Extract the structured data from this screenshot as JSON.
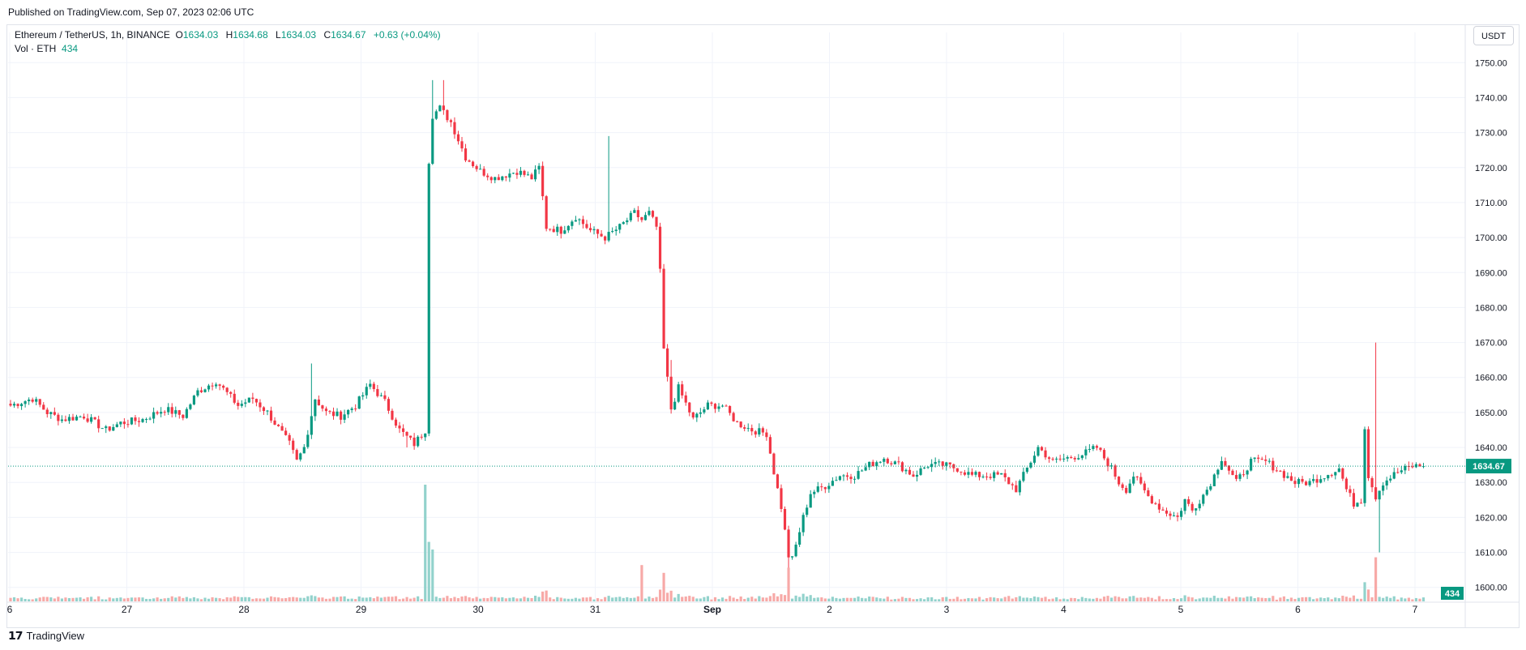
{
  "published": "Published on TradingView.com, Sep 07, 2023 02:06 UTC",
  "legend": {
    "symbol": "Ethereum / TetherUS, 1h, BINANCE",
    "o_label": "O",
    "o": "1634.03",
    "h_label": "H",
    "h": "1634.68",
    "l_label": "L",
    "l": "1634.03",
    "c_label": "C",
    "c": "1634.67",
    "change": "+0.63 (+0.04%)",
    "vol_label": "Vol · ETH",
    "vol": "434"
  },
  "currency": "USDT",
  "footer_brand": "TradingView",
  "colors": {
    "up": "#089981",
    "down": "#f23645",
    "vol_up": "#92d2cc",
    "vol_down": "#f7a9a7",
    "grid": "#f0f3fa",
    "axis_text": "#131722"
  },
  "chart_data": {
    "type": "candlestick",
    "symbol": "ETHUSDT",
    "interval": "1h",
    "y_ticks": [
      "1750.00",
      "1740.00",
      "1730.00",
      "1720.00",
      "1710.00",
      "1700.00",
      "1690.00",
      "1680.00",
      "1670.00",
      "1660.00",
      "1650.00",
      "1640.00",
      "1630.00",
      "1620.00",
      "1610.00",
      "1600.00"
    ],
    "ylim": [
      1596,
      1754
    ],
    "x_ticks": [
      "6",
      "27",
      "28",
      "29",
      "30",
      "31",
      "Sep",
      "2",
      "3",
      "4",
      "5",
      "6",
      "7"
    ],
    "last_price": "1634.67",
    "last_volume": "434",
    "close_path": [
      [
        0,
        1652
      ],
      [
        6,
        1654
      ],
      [
        10,
        1650
      ],
      [
        14,
        1648
      ],
      [
        20,
        1649
      ],
      [
        26,
        1645
      ],
      [
        30,
        1647
      ],
      [
        36,
        1648
      ],
      [
        42,
        1651
      ],
      [
        47,
        1649
      ],
      [
        51,
        1656
      ],
      [
        56,
        1659
      ],
      [
        62,
        1652
      ],
      [
        66,
        1654
      ],
      [
        70,
        1650
      ],
      [
        76,
        1641
      ],
      [
        78,
        1636
      ],
      [
        80,
        1640
      ],
      [
        83,
        1654
      ],
      [
        86,
        1650
      ],
      [
        90,
        1649
      ],
      [
        94,
        1652
      ],
      [
        98,
        1658
      ],
      [
        102,
        1653
      ],
      [
        106,
        1645
      ],
      [
        110,
        1641
      ],
      [
        113,
        1645
      ],
      [
        114,
        1722
      ],
      [
        115,
        1735
      ],
      [
        117,
        1737
      ],
      [
        120,
        1733
      ],
      [
        124,
        1723
      ],
      [
        128,
        1719
      ],
      [
        132,
        1717
      ],
      [
        138,
        1719
      ],
      [
        142,
        1717
      ],
      [
        144,
        1720
      ],
      [
        146,
        1703
      ],
      [
        150,
        1702
      ],
      [
        154,
        1706
      ],
      [
        158,
        1702
      ],
      [
        162,
        1700
      ],
      [
        166,
        1703
      ],
      [
        170,
        1707
      ],
      [
        172,
        1705
      ],
      [
        174,
        1707
      ],
      [
        176,
        1703
      ],
      [
        177,
        1690
      ],
      [
        178,
        1668
      ],
      [
        180,
        1651
      ],
      [
        182,
        1657
      ],
      [
        186,
        1648
      ],
      [
        190,
        1652
      ],
      [
        194,
        1652
      ],
      [
        198,
        1647
      ],
      [
        202,
        1645
      ],
      [
        206,
        1644
      ],
      [
        208,
        1633
      ],
      [
        210,
        1623
      ],
      [
        212,
        1609
      ],
      [
        213,
        1608
      ],
      [
        214,
        1612
      ],
      [
        216,
        1620
      ],
      [
        218,
        1627
      ],
      [
        222,
        1629
      ],
      [
        226,
        1632
      ],
      [
        230,
        1632
      ],
      [
        234,
        1635
      ],
      [
        238,
        1637
      ],
      [
        242,
        1635
      ],
      [
        246,
        1632
      ],
      [
        250,
        1635
      ],
      [
        254,
        1635
      ],
      [
        258,
        1634
      ],
      [
        262,
        1632
      ],
      [
        266,
        1632
      ],
      [
        270,
        1632
      ],
      [
        274,
        1628
      ],
      [
        278,
        1636
      ],
      [
        280,
        1640
      ],
      [
        284,
        1636
      ],
      [
        288,
        1637
      ],
      [
        292,
        1638
      ],
      [
        296,
        1640
      ],
      [
        300,
        1634
      ],
      [
        302,
        1630
      ],
      [
        304,
        1628
      ],
      [
        306,
        1632
      ],
      [
        310,
        1626
      ],
      [
        314,
        1622
      ],
      [
        318,
        1620
      ],
      [
        320,
        1625
      ],
      [
        322,
        1622
      ],
      [
        326,
        1628
      ],
      [
        328,
        1632
      ],
      [
        330,
        1637
      ],
      [
        334,
        1630
      ],
      [
        338,
        1636
      ],
      [
        342,
        1636
      ],
      [
        346,
        1633
      ],
      [
        350,
        1630
      ],
      [
        354,
        1630
      ],
      [
        358,
        1632
      ],
      [
        362,
        1634
      ],
      [
        364,
        1628
      ],
      [
        366,
        1624
      ],
      [
        368,
        1625
      ],
      [
        369,
        1646
      ],
      [
        370,
        1632
      ],
      [
        372,
        1626
      ],
      [
        374,
        1630
      ],
      [
        378,
        1633
      ],
      [
        382,
        1634.67
      ]
    ],
    "spikes": [
      [
        82,
        1664
      ],
      [
        108,
        1640
      ],
      [
        115,
        1745
      ],
      [
        118,
        1745
      ],
      [
        163,
        1729
      ],
      [
        180,
        1665
      ],
      [
        212,
        1605
      ],
      [
        372,
        1670
      ],
      [
        373,
        1610
      ]
    ],
    "volume_spikes": [
      [
        113,
        45
      ],
      [
        115,
        20
      ],
      [
        172,
        14
      ],
      [
        178,
        11
      ],
      [
        212,
        13
      ],
      [
        372,
        17
      ]
    ]
  }
}
